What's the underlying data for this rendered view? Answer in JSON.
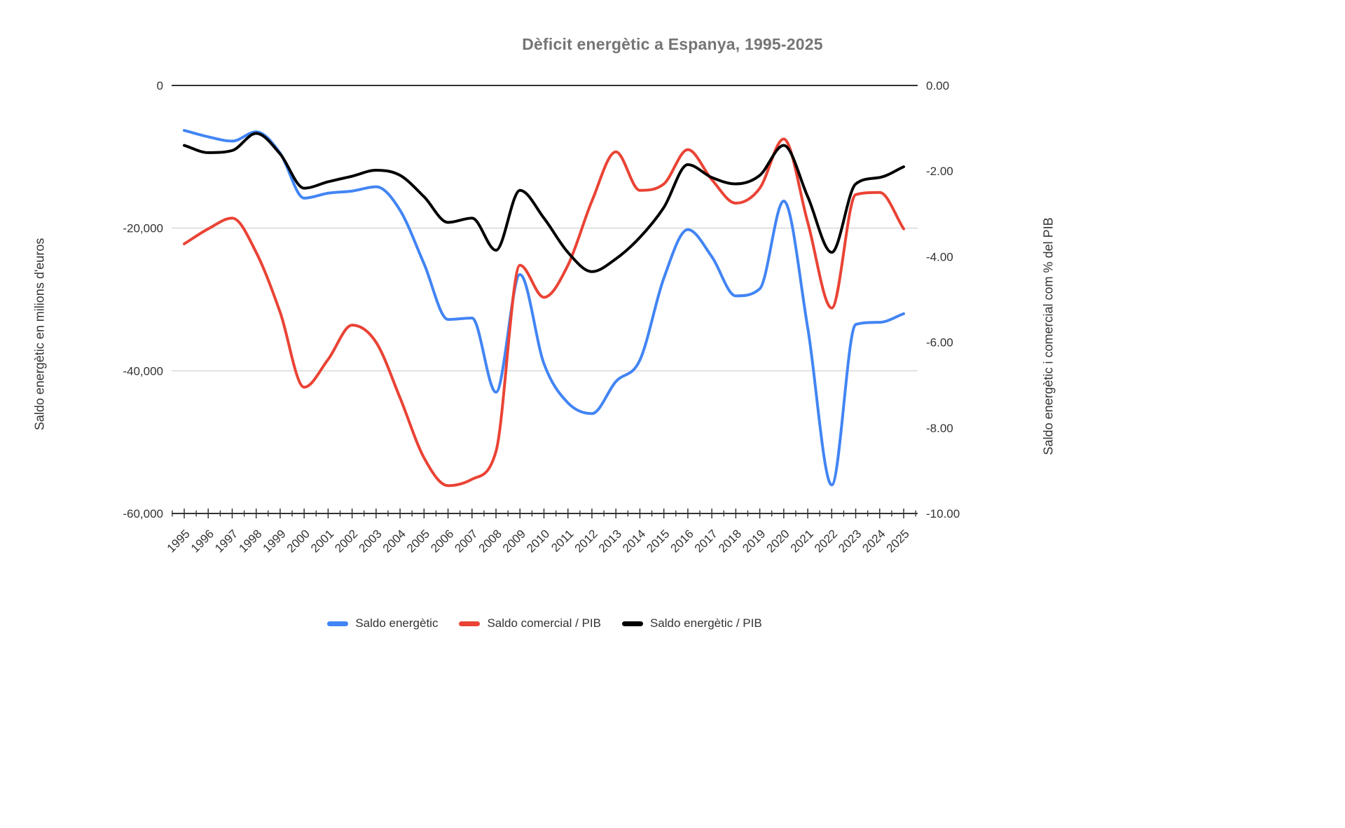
{
  "chart_data": {
    "type": "line",
    "title": "Dèficit energètic a Espanya, 1995-2025",
    "categories": [
      "1995",
      "1996",
      "1997",
      "1998",
      "1999",
      "2000",
      "2001",
      "2002",
      "2003",
      "2004",
      "2005",
      "2006",
      "2007",
      "2008",
      "2009",
      "2010",
      "2011",
      "2012",
      "2013",
      "2014",
      "2015",
      "2016",
      "2017",
      "2018",
      "2019",
      "2020",
      "2021",
      "2022",
      "2023",
      "2024",
      "2025"
    ],
    "left_axis": {
      "title": "Saldo energètic en milions d'euros",
      "max": 0,
      "min": -60000,
      "ticks": [
        0,
        -20000,
        -40000,
        -60000
      ],
      "tick_labels": [
        "0",
        "-20,000",
        "-40,000",
        "-60,000"
      ]
    },
    "right_axis": {
      "title": "Saldo energètic i comercial com % del PIB",
      "max": 0,
      "min": -10,
      "ticks": [
        0,
        -2,
        -4,
        -6,
        -8,
        -10
      ],
      "tick_labels": [
        "0.00",
        "-2.00",
        "-4.00",
        "-6.00",
        "-8.00",
        "-10.00"
      ]
    },
    "series": [
      {
        "name": "Saldo energètic",
        "axis": "left",
        "color": "#4285f4",
        "values": [
          -6300,
          -7200,
          -7800,
          -6500,
          -9500,
          -15800,
          -15100,
          -14800,
          -14200,
          -17500,
          -25000,
          -32800,
          -32600,
          -43000,
          -26500,
          -39000,
          -44500,
          -46000,
          -41500,
          -38500,
          -27000,
          -20200,
          -24000,
          -29500,
          -28500,
          -16200,
          -34000,
          -56000,
          -33500,
          -33200,
          -32000
        ]
      },
      {
        "name": "Saldo comercial / PIB",
        "axis": "right",
        "color": "#ea4335",
        "values": [
          -3.7,
          -3.35,
          -3.1,
          -3.9,
          -5.3,
          -7.05,
          -6.4,
          -5.6,
          -6.0,
          -7.3,
          -8.7,
          -9.35,
          -9.2,
          -8.55,
          -4.2,
          -4.95,
          -4.2,
          -2.7,
          -1.55,
          -2.45,
          -2.3,
          -1.5,
          -2.2,
          -2.75,
          -2.4,
          -1.25,
          -3.2,
          -5.2,
          -2.55,
          -2.5,
          -3.35
        ]
      },
      {
        "name": "Saldo energètic / PIB",
        "axis": "right",
        "color": "#000000",
        "values": [
          -1.4,
          -1.57,
          -1.52,
          -1.12,
          -1.6,
          -2.4,
          -2.25,
          -2.12,
          -1.98,
          -2.1,
          -2.6,
          -3.2,
          -3.1,
          -3.85,
          -2.45,
          -3.1,
          -3.9,
          -4.35,
          -4.05,
          -3.55,
          -2.85,
          -1.85,
          -2.15,
          -2.3,
          -2.1,
          -1.4,
          -2.6,
          -3.9,
          -2.3,
          -2.15,
          -1.9
        ]
      }
    ],
    "legend_position": "bottom",
    "grid": "horizontal",
    "styles": {
      "gridline_color": "#d9d9d9",
      "axis_color": "#333333",
      "label_color": "#333333",
      "title_color": "#757575"
    }
  }
}
